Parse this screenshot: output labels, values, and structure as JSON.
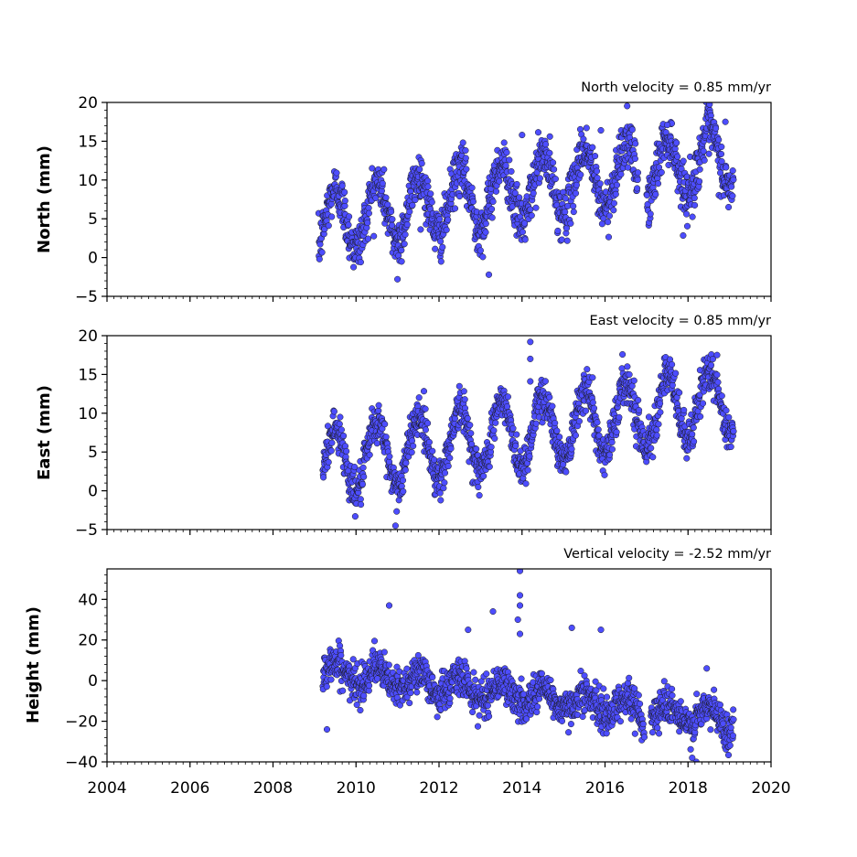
{
  "chart_data": [
    {
      "type": "scatter",
      "panel": "north",
      "annotation": "North velocity = 0.85 mm/yr",
      "ylabel": "North (mm)",
      "xlim": [
        2004,
        2020
      ],
      "ylim": [
        -5,
        20
      ],
      "yticks": [
        -5,
        0,
        5,
        10,
        15,
        20
      ],
      "color": "#4d4dff",
      "data_range": [
        2009.1,
        2019.1
      ],
      "trend": {
        "start_year": 2009.1,
        "start_value": 4.5,
        "rate_mm_per_yr": 0.85
      },
      "seasonal_amplitude": 4.0,
      "noise_sd": 1.6,
      "outliers": [
        [
          2011.0,
          -2.8
        ],
        [
          2013.2,
          -2.2
        ],
        [
          2014.0,
          15.8
        ],
        [
          2015.9,
          16.4
        ],
        [
          2017.5,
          17.1
        ],
        [
          2018.9,
          17.5
        ]
      ]
    },
    {
      "type": "scatter",
      "panel": "east",
      "annotation": "East velocity = 0.85 mm/yr",
      "ylabel": "East (mm)",
      "xlim": [
        2004,
        2020
      ],
      "ylim": [
        -5,
        20
      ],
      "yticks": [
        -5,
        0,
        5,
        10,
        15,
        20
      ],
      "color": "#4d4dff",
      "data_range": [
        2009.2,
        2019.1
      ],
      "trend": {
        "start_year": 2009.2,
        "start_value": 3.5,
        "rate_mm_per_yr": 0.85
      },
      "seasonal_amplitude": 4.3,
      "noise_sd": 1.3,
      "outliers": [
        [
          2010.95,
          -4.5
        ],
        [
          2014.2,
          19.2
        ],
        [
          2014.2,
          17.0
        ],
        [
          2014.2,
          14.1
        ],
        [
          2015.7,
          14.6
        ],
        [
          2016.7,
          14.2
        ],
        [
          2018.7,
          17.5
        ]
      ]
    },
    {
      "type": "scatter",
      "panel": "height",
      "annotation": "Vertical velocity = -2.52 mm/yr",
      "ylabel": "Height (mm)",
      "xlim": [
        2004,
        2020
      ],
      "ylim": [
        -40,
        55
      ],
      "yticks": [
        -40,
        -20,
        0,
        20,
        40
      ],
      "color": "#4d4dff",
      "data_range": [
        2009.2,
        2019.1
      ],
      "trend": {
        "start_year": 2009.2,
        "start_value": 5.0,
        "rate_mm_per_yr": -2.52
      },
      "seasonal_amplitude": 5.0,
      "noise_sd": 4.5,
      "outliers": [
        [
          2009.3,
          -24
        ],
        [
          2010.8,
          37
        ],
        [
          2012.7,
          25
        ],
        [
          2013.3,
          34
        ],
        [
          2013.95,
          54
        ],
        [
          2013.95,
          42
        ],
        [
          2013.95,
          37
        ],
        [
          2013.95,
          23
        ],
        [
          2013.9,
          30
        ],
        [
          2015.2,
          26
        ],
        [
          2015.9,
          25
        ],
        [
          2017.3,
          -26
        ],
        [
          2018.1,
          -38
        ],
        [
          2018.2,
          -40
        ],
        [
          2018.45,
          6
        ]
      ]
    }
  ],
  "x_axis": {
    "ticks": [
      "2004",
      "2006",
      "2008",
      "2010",
      "2012",
      "2014",
      "2016",
      "2018",
      "2020"
    ]
  },
  "colors": {
    "marker_fill": "#4d4dff",
    "marker_edge": "#1a1a1a",
    "axes": "#000000"
  }
}
